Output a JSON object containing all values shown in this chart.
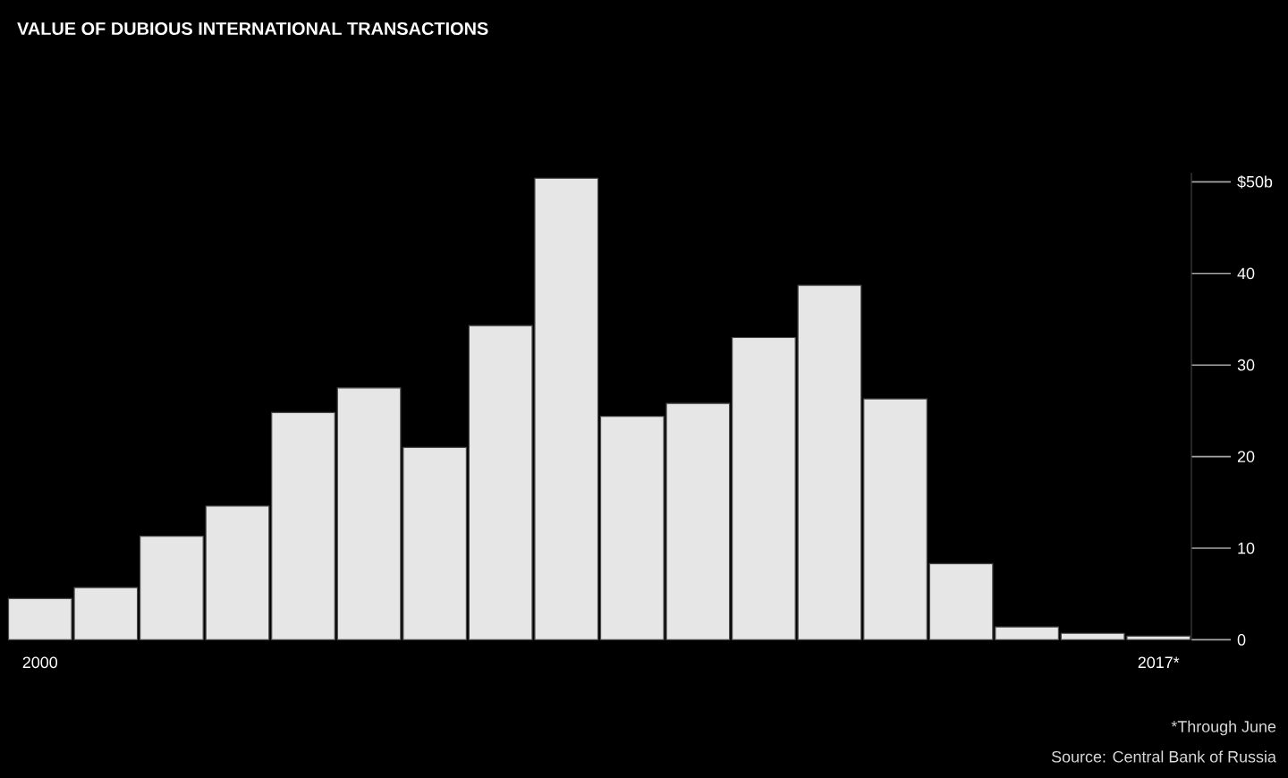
{
  "chart_data": {
    "type": "bar",
    "title": "VALUE OF DUBIOUS INTERNATIONAL TRANSACTIONS",
    "categories": [
      "2000",
      null,
      null,
      null,
      null,
      null,
      null,
      null,
      null,
      null,
      null,
      null,
      null,
      null,
      null,
      null,
      null,
      "2017*"
    ],
    "values": [
      4.5,
      5.7,
      11.3,
      14.6,
      24.8,
      27.5,
      21.0,
      34.3,
      50.4,
      24.4,
      25.8,
      33.0,
      38.7,
      26.3,
      8.3,
      1.4,
      0.7,
      0.4
    ],
    "color": "#e6e6e6",
    "ylim": [
      0,
      51
    ],
    "yticks": [
      0,
      10,
      20,
      30,
      40,
      {
        "value": 50,
        "label": "$50b"
      }
    ],
    "annotations": [
      "*Through June",
      "Source: Central Bank of Russia"
    ]
  }
}
